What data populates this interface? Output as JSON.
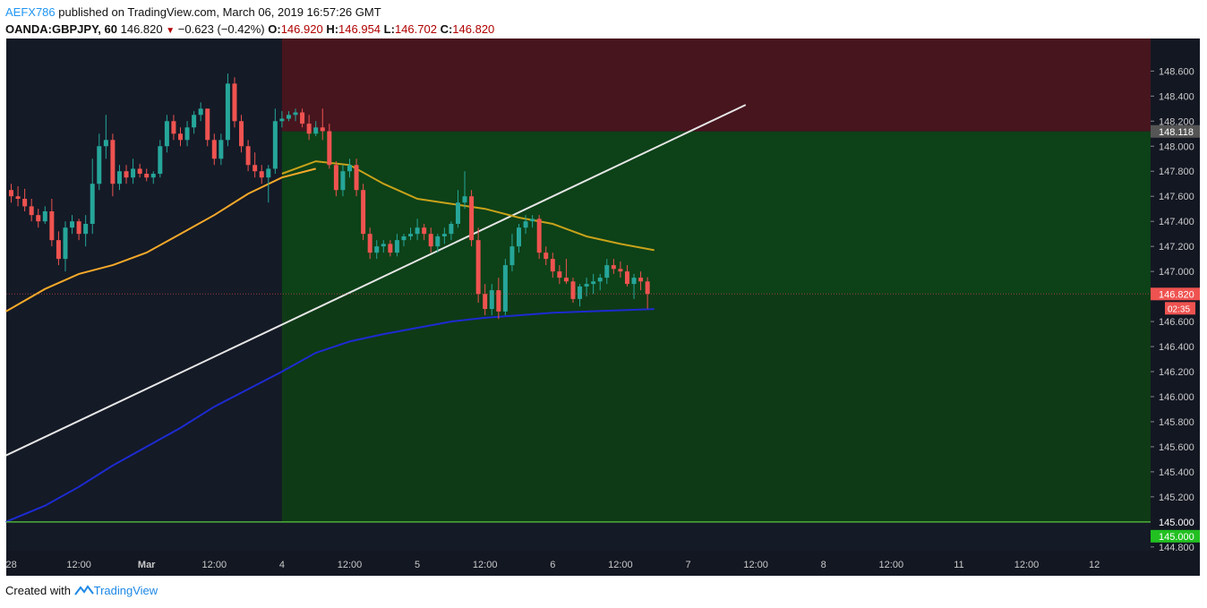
{
  "header": {
    "author": "AEFX786",
    "published_on": "published on TradingView.com, March 06, 2019 16:57:26 GMT",
    "symbol_interval": "OANDA:GBPJPY, 60",
    "last": "146.820",
    "change": "−0.623 (−0.42%)",
    "o_label": "O:",
    "o_value": "146.920",
    "h_label": "H:",
    "h_value": "146.954",
    "l_label": "L:",
    "l_value": "146.702",
    "c_label": "C:",
    "c_value": "146.820"
  },
  "footer": {
    "created_with": "Created with",
    "brand": "TradingView"
  },
  "colors": {
    "background": "#141a26",
    "loss_zone": "#47151e",
    "profit_zone": "#0d4118",
    "profit_zone_past": "#0f3a16",
    "bull": "#26a69a",
    "bear": "#ef5350",
    "ma_fast": "#c8a21a",
    "ma_mid": "#f7a92a",
    "ma_slow": "#1d2bd1",
    "trendline": "#e6e6e6",
    "support": "#4caf3a",
    "price_tag": "#ef5350",
    "target_tag": "#22c021",
    "axis_bg": "#131722",
    "axis_text": "#c9c9c9"
  },
  "chart_data": {
    "type": "candlestick",
    "symbol": "OANDA:GBPJPY",
    "interval": "60",
    "y_range": [
      144.77,
      148.86
    ],
    "y_ticks": [
      "148.600",
      "148.400",
      "148.200",
      "148.000",
      "147.800",
      "147.600",
      "147.400",
      "147.200",
      "147.000",
      "146.800",
      "146.600",
      "146.400",
      "146.200",
      "146.000",
      "145.800",
      "145.600",
      "145.400",
      "145.200",
      "145.000",
      "144.800"
    ],
    "x_ticks": [
      "28",
      "12:00",
      "Mar",
      "12:00",
      "4",
      "12:00",
      "5",
      "12:00",
      "6",
      "12:00",
      "7",
      "12:00",
      "8",
      "12:00",
      "11",
      "12:00",
      "12"
    ],
    "x_tick_slots": [
      0,
      10,
      20,
      30,
      40,
      50,
      60,
      70,
      80,
      90,
      100,
      110,
      120,
      130,
      140,
      150,
      160
    ],
    "last_price": "146.820",
    "countdown": "02:35",
    "position": {
      "entry": 148.118,
      "target": 145.0,
      "stop_top": 148.86,
      "entry_label": "148.118",
      "target_labels": [
        "145.000",
        "145.000"
      ]
    },
    "support_level": 145.0,
    "trendline": {
      "start": [
        0,
        145.53
      ],
      "end": [
        108.5,
        148.33
      ]
    },
    "candles": [
      [
        147.65,
        147.7,
        147.55,
        147.6
      ],
      [
        147.6,
        147.68,
        147.52,
        147.58
      ],
      [
        147.58,
        147.66,
        147.48,
        147.52
      ],
      [
        147.52,
        147.58,
        147.4,
        147.45
      ],
      [
        147.45,
        147.5,
        147.35,
        147.4
      ],
      [
        147.4,
        147.52,
        147.38,
        147.48
      ],
      [
        147.48,
        147.58,
        147.2,
        147.25
      ],
      [
        147.25,
        147.32,
        147.05,
        147.1
      ],
      [
        147.1,
        147.4,
        147.0,
        147.35
      ],
      [
        147.35,
        147.45,
        147.3,
        147.4
      ],
      [
        147.4,
        147.42,
        147.25,
        147.3
      ],
      [
        147.3,
        147.45,
        147.2,
        147.38
      ],
      [
        147.38,
        147.9,
        147.3,
        147.7
      ],
      [
        147.7,
        148.1,
        147.65,
        148.0
      ],
      [
        148.0,
        148.25,
        147.9,
        148.05
      ],
      [
        148.05,
        148.1,
        147.6,
        147.7
      ],
      [
        147.7,
        147.85,
        147.65,
        147.8
      ],
      [
        147.8,
        147.85,
        147.7,
        147.75
      ],
      [
        147.75,
        147.9,
        147.7,
        147.82
      ],
      [
        147.82,
        147.86,
        147.75,
        147.78
      ],
      [
        147.78,
        147.82,
        147.72,
        147.75
      ],
      [
        147.75,
        147.8,
        147.7,
        147.78
      ],
      [
        147.78,
        148.05,
        147.75,
        148.0
      ],
      [
        148.0,
        148.25,
        147.95,
        148.2
      ],
      [
        148.2,
        148.25,
        148.05,
        148.1
      ],
      [
        148.1,
        148.15,
        148.0,
        148.05
      ],
      [
        148.05,
        148.2,
        148.0,
        148.15
      ],
      [
        148.15,
        148.28,
        148.1,
        148.25
      ],
      [
        148.25,
        148.35,
        148.2,
        148.3
      ],
      [
        148.3,
        148.3,
        148.0,
        148.05
      ],
      [
        148.05,
        148.1,
        147.85,
        147.9
      ],
      [
        147.9,
        148.1,
        147.85,
        148.05
      ],
      [
        148.05,
        148.58,
        148.0,
        148.5
      ],
      [
        148.5,
        148.55,
        148.15,
        148.2
      ],
      [
        148.2,
        148.25,
        147.95,
        148.0
      ],
      [
        148.0,
        148.05,
        147.8,
        147.85
      ],
      [
        147.85,
        147.95,
        147.75,
        147.8
      ],
      [
        147.8,
        147.85,
        147.7,
        147.75
      ],
      [
        147.75,
        147.85,
        147.55,
        147.82
      ],
      [
        147.82,
        148.3,
        147.78,
        148.2
      ],
      [
        148.2,
        148.28,
        148.15,
        148.22
      ],
      [
        148.22,
        148.28,
        148.2,
        148.25
      ],
      [
        148.25,
        148.3,
        148.2,
        148.27
      ],
      [
        148.27,
        148.3,
        148.15,
        148.18
      ],
      [
        148.18,
        148.25,
        148.05,
        148.1
      ],
      [
        148.1,
        148.2,
        148.08,
        148.15
      ],
      [
        148.15,
        148.3,
        148.05,
        148.12
      ],
      [
        148.12,
        148.18,
        147.82,
        147.85
      ],
      [
        147.85,
        147.88,
        147.6,
        147.65
      ],
      [
        147.65,
        147.85,
        147.6,
        147.8
      ],
      [
        147.8,
        147.9,
        147.75,
        147.85
      ],
      [
        147.85,
        147.9,
        147.6,
        147.65
      ],
      [
        147.65,
        147.7,
        147.25,
        147.3
      ],
      [
        147.3,
        147.35,
        147.1,
        147.15
      ],
      [
        147.15,
        147.25,
        147.1,
        147.2
      ],
      [
        147.2,
        147.25,
        147.15,
        147.22
      ],
      [
        147.22,
        147.25,
        147.12,
        147.15
      ],
      [
        147.15,
        147.3,
        147.12,
        147.25
      ],
      [
        147.25,
        147.3,
        147.2,
        147.28
      ],
      [
        147.28,
        147.35,
        147.25,
        147.3
      ],
      [
        147.3,
        147.42,
        147.25,
        147.35
      ],
      [
        147.35,
        147.38,
        147.25,
        147.3
      ],
      [
        147.3,
        147.35,
        147.15,
        147.2
      ],
      [
        147.2,
        147.3,
        147.15,
        147.28
      ],
      [
        147.28,
        147.35,
        147.22,
        147.3
      ],
      [
        147.3,
        147.4,
        147.25,
        147.38
      ],
      [
        147.38,
        147.65,
        147.35,
        147.55
      ],
      [
        147.55,
        147.8,
        147.5,
        147.6
      ],
      [
        147.6,
        147.65,
        147.2,
        147.25
      ],
      [
        147.25,
        147.35,
        146.75,
        146.82
      ],
      [
        146.82,
        146.9,
        146.65,
        146.7
      ],
      [
        146.7,
        146.9,
        146.65,
        146.85
      ],
      [
        146.85,
        146.95,
        146.62,
        146.68
      ],
      [
        146.68,
        147.1,
        146.65,
        147.05
      ],
      [
        147.05,
        147.3,
        147.0,
        147.2
      ],
      [
        147.2,
        147.38,
        147.15,
        147.35
      ],
      [
        147.35,
        147.45,
        147.3,
        147.4
      ],
      [
        147.4,
        147.45,
        147.35,
        147.42
      ],
      [
        147.42,
        147.45,
        147.1,
        147.15
      ],
      [
        147.15,
        147.2,
        147.05,
        147.1
      ],
      [
        147.1,
        147.15,
        146.95,
        147.0
      ],
      [
        147.0,
        147.05,
        146.9,
        146.95
      ],
      [
        146.95,
        147.1,
        146.9,
        146.92
      ],
      [
        146.92,
        146.95,
        146.75,
        146.78
      ],
      [
        146.78,
        146.9,
        146.72,
        146.88
      ],
      [
        146.88,
        146.95,
        146.8,
        146.9
      ],
      [
        146.9,
        146.98,
        146.82,
        146.92
      ],
      [
        146.92,
        146.98,
        146.85,
        146.95
      ],
      [
        146.95,
        147.1,
        146.9,
        147.05
      ],
      [
        147.05,
        147.1,
        146.98,
        147.02
      ],
      [
        147.02,
        147.08,
        146.95,
        147.0
      ],
      [
        147.0,
        147.05,
        146.88,
        146.9
      ],
      [
        146.9,
        146.98,
        146.78,
        146.95
      ],
      [
        146.95,
        147.0,
        146.85,
        146.92
      ],
      [
        146.92,
        146.954,
        146.702,
        146.82
      ]
    ],
    "moving_averages": [
      {
        "color_key": "ma_mid",
        "slots": [
          0,
          5,
          10,
          15,
          20,
          25,
          30,
          35,
          40,
          45
        ],
        "values": [
          146.68,
          146.86,
          146.98,
          147.05,
          147.15,
          147.3,
          147.45,
          147.62,
          147.75,
          147.82
        ]
      },
      {
        "color_key": "ma_fast",
        "slots": [
          40,
          45,
          50,
          55,
          60,
          65,
          70,
          75,
          80,
          85,
          90,
          95
        ],
        "values": [
          147.78,
          147.88,
          147.85,
          147.7,
          147.58,
          147.54,
          147.5,
          147.43,
          147.38,
          147.28,
          147.22,
          147.17
        ]
      },
      {
        "color_key": "ma_slow",
        "slots": [
          0,
          5,
          10,
          15,
          20,
          25,
          30,
          35,
          40,
          45,
          50,
          55,
          60,
          65,
          70,
          75,
          80,
          85,
          90,
          95
        ],
        "values": [
          145.0,
          145.13,
          145.28,
          145.45,
          145.6,
          145.75,
          145.92,
          146.06,
          146.2,
          146.35,
          146.44,
          146.5,
          146.55,
          146.6,
          146.63,
          146.65,
          146.67,
          146.68,
          146.69,
          146.7
        ]
      }
    ]
  }
}
